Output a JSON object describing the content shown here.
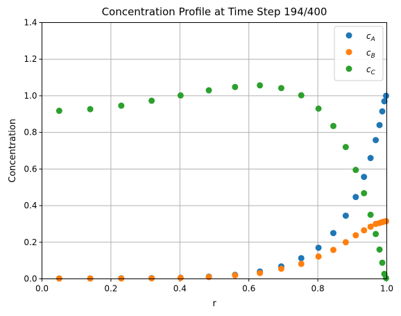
{
  "chart_data": {
    "type": "scatter",
    "title": "Concentration Profile at Time Step 194/400",
    "xlabel": "r",
    "ylabel": "Concentration",
    "xlim": [
      0,
      1
    ],
    "ylim": [
      0,
      1.4
    ],
    "xticks": [
      "0.0",
      "0.2",
      "0.4",
      "0.6",
      "0.8",
      "1.0"
    ],
    "yticks": [
      "0.0",
      "0.2",
      "0.4",
      "0.6",
      "0.8",
      "1.0",
      "1.2",
      "1.4"
    ],
    "grid": true,
    "legend_position": "top-right",
    "x": [
      0.05,
      0.14,
      0.23,
      0.318,
      0.402,
      0.484,
      0.56,
      0.632,
      0.694,
      0.752,
      0.802,
      0.845,
      0.881,
      0.91,
      0.934,
      0.953,
      0.968,
      0.979,
      0.987,
      0.993,
      0.998
    ],
    "series": [
      {
        "name": "c_A",
        "color": "#1f77b4",
        "values": [
          0.002,
          0.002,
          0.003,
          0.004,
          0.006,
          0.012,
          0.022,
          0.04,
          0.068,
          0.113,
          0.17,
          0.25,
          0.345,
          0.447,
          0.557,
          0.66,
          0.758,
          0.84,
          0.915,
          0.97,
          1.0
        ]
      },
      {
        "name": "c_B",
        "color": "#ff7f0e",
        "values": [
          0.002,
          0.002,
          0.002,
          0.003,
          0.005,
          0.01,
          0.019,
          0.032,
          0.055,
          0.082,
          0.122,
          0.158,
          0.2,
          0.238,
          0.265,
          0.285,
          0.3,
          0.305,
          0.31,
          0.313,
          0.315
        ]
      },
      {
        "name": "c_C",
        "color": "#2ca02c",
        "values": [
          0.918,
          0.927,
          0.946,
          0.973,
          1.002,
          1.03,
          1.048,
          1.057,
          1.042,
          1.003,
          0.93,
          0.835,
          0.72,
          0.595,
          0.468,
          0.35,
          0.245,
          0.16,
          0.088,
          0.027,
          0.004
        ]
      }
    ]
  }
}
